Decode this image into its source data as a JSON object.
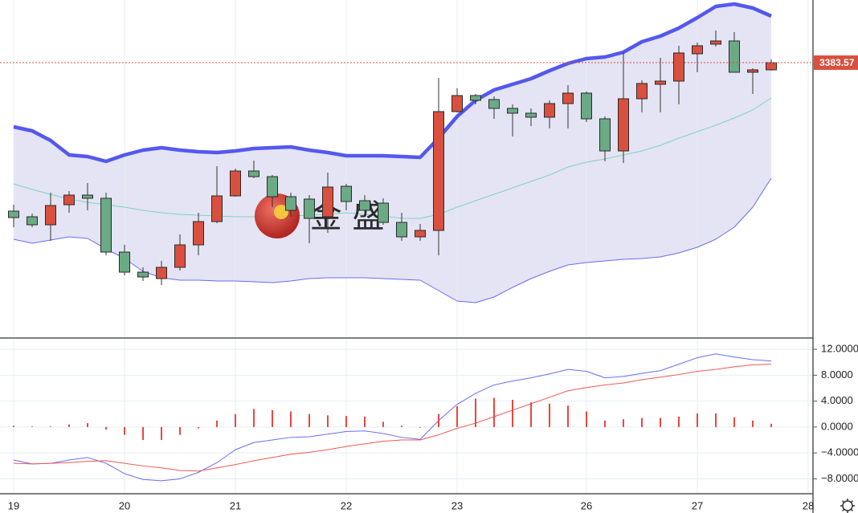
{
  "watermark": "金 盛",
  "chart_data": [
    {
      "type": "candlestick",
      "categories": [
        "19",
        null,
        null,
        null,
        null,
        null,
        "20",
        null,
        null,
        null,
        null,
        null,
        "21",
        null,
        null,
        null,
        null,
        null,
        "22",
        null,
        null,
        null,
        null,
        null,
        "23",
        null,
        null,
        null,
        null,
        null,
        null,
        "26",
        null,
        null,
        null,
        null,
        null,
        "27",
        null,
        null,
        null,
        null,
        null,
        "28"
      ],
      "open": [
        3291.1,
        3287.6,
        3282.6,
        3295.1,
        3301.1,
        3299.1,
        3265.6,
        3253.1,
        3249.1,
        3256.1,
        3270.1,
        3284.6,
        3300.6,
        3316.1,
        3312.6,
        3300.1,
        3298.6,
        3287.6,
        3306.6,
        3297.6,
        3296.1,
        3284.1,
        3275.1,
        3279.1,
        3353.1,
        3363.1,
        3360.6,
        3355.1,
        3352.1,
        3349.6,
        3358.1,
        3364.6,
        3348.6,
        3328.6,
        3361.1,
        3370.1,
        3372.1,
        3389.1,
        3395.1,
        3397.1,
        3377.6,
        3379.1,
        null,
        null
      ],
      "high": [
        3295.1,
        3289.6,
        3302.6,
        3303.6,
        3308.6,
        3302.6,
        3270.1,
        3256.1,
        3260.1,
        3276.6,
        3290.1,
        3319.1,
        3317.6,
        3322.6,
        3313.6,
        3302.6,
        3301.1,
        3315.1,
        3308.1,
        3301.1,
        3299.1,
        3290.1,
        3283.1,
        3374.1,
        3367.6,
        3364.1,
        3362.6,
        3357.6,
        3355.1,
        3360.1,
        3369.6,
        3365.6,
        3350.1,
        3390.1,
        3372.6,
        3386.6,
        3394.1,
        3396.1,
        3403.6,
        3402.6,
        3380.1,
        3385.6,
        null,
        null
      ],
      "low": [
        3281.1,
        3281.1,
        3272.6,
        3290.1,
        3291.6,
        3263.6,
        3251.1,
        3247.6,
        3245.1,
        3254.1,
        3263.6,
        3283.6,
        3300.1,
        3311.6,
        3293.6,
        3287.6,
        3271.1,
        3277.6,
        3291.6,
        3288.6,
        3282.6,
        3272.6,
        3272.6,
        3263.6,
        3352.6,
        3357.6,
        3348.6,
        3337.6,
        3344.1,
        3342.6,
        3342.6,
        3346.6,
        3322.1,
        3321.1,
        3352.6,
        3352.6,
        3357.6,
        3377.6,
        3393.6,
        3377.6,
        3364.1,
        3378.6,
        null,
        null
      ],
      "close": [
        3287.1,
        3282.6,
        3294.6,
        3301.1,
        3299.1,
        3265.6,
        3253.1,
        3250.1,
        3256.1,
        3270.1,
        3284.6,
        3300.6,
        3316.1,
        3312.6,
        3300.1,
        3291.6,
        3286.6,
        3306.1,
        3297.1,
        3291.6,
        3284.1,
        3275.1,
        3279.1,
        3353.1,
        3363.1,
        3360.1,
        3355.1,
        3352.1,
        3349.6,
        3358.1,
        3364.6,
        3348.6,
        3328.6,
        3361.1,
        3370.6,
        3372.1,
        3389.6,
        3394.1,
        3397.1,
        3377.6,
        3379.1,
        3383.57,
        null,
        null
      ],
      "up_color": "#d9503f",
      "down_color": "#6aaa85",
      "upper": {
        "color": "#5558ee",
        "values": [
          3343.6,
          3341.1,
          3335.1,
          3326.1,
          3325.1,
          3322.1,
          3326.1,
          3329.1,
          3330.6,
          3329.1,
          3328.1,
          3327.6,
          3328.6,
          3330.1,
          3330.6,
          3331.1,
          3329.1,
          3327.6,
          3325.6,
          3325.6,
          3325.6,
          3325.1,
          3324.6,
          3336.6,
          3350.1,
          3360.1,
          3366.6,
          3370.1,
          3373.6,
          3378.6,
          3383.1,
          3386.1,
          3387.1,
          3390.1,
          3396.6,
          3400.1,
          3405.1,
          3411.6,
          3418.6,
          3420.1,
          3417.6,
          3412.6,
          null,
          null
        ]
      },
      "middle": {
        "color": "#7fd3bf",
        "values": [
          3308.1,
          3304.6,
          3301.6,
          3298.6,
          3296.6,
          3295.1,
          3293.6,
          3291.6,
          3290.1,
          3289.1,
          3288.6,
          3288.1,
          3287.6,
          3287.6,
          3287.6,
          3288.1,
          3288.6,
          3289.1,
          3290.1,
          3289.1,
          3288.1,
          3286.6,
          3286.6,
          3289.1,
          3293.6,
          3297.6,
          3301.6,
          3305.6,
          3309.6,
          3313.6,
          3318.6,
          3321.6,
          3323.6,
          3326.1,
          3328.6,
          3332.1,
          3336.6,
          3340.6,
          3344.6,
          3349.1,
          3354.1,
          3361.6,
          null,
          null
        ]
      },
      "lower": {
        "color": "#6a6cf0",
        "values": [
          3273.6,
          3271.1,
          3273.1,
          3275.1,
          3274.1,
          3267.6,
          3261.6,
          3253.6,
          3249.6,
          3248.1,
          3248.1,
          3247.6,
          3247.6,
          3247.1,
          3246.6,
          3247.6,
          3249.1,
          3249.6,
          3249.6,
          3249.6,
          3249.1,
          3248.6,
          3248.1,
          3241.6,
          3235.1,
          3234.1,
          3237.6,
          3243.6,
          3249.1,
          3253.6,
          3257.6,
          3259.1,
          3260.1,
          3261.1,
          3261.6,
          3262.6,
          3265.1,
          3268.6,
          3273.6,
          3281.1,
          3293.6,
          3311.6,
          null,
          null
        ]
      },
      "band_color": "#e4e4f4",
      "last_label": "3383.57",
      "last_color": "#d9503f",
      "ylim": [
        3212.6,
        3422.6
      ]
    },
    {
      "type": "combo",
      "series": [
        {
          "type": "line",
          "color": "#6b6ef2",
          "values": [
            -5.1,
            -5.7,
            -5.6,
            -5.1,
            -4.7,
            -5.6,
            -7.2,
            -8.1,
            -8.3,
            -8.0,
            -7.0,
            -5.5,
            -3.5,
            -2.4,
            -2.0,
            -1.6,
            -1.5,
            -1.1,
            -0.7,
            -0.6,
            -1.0,
            -1.6,
            -1.9,
            1.0,
            3.5,
            5.2,
            6.5,
            7.1,
            7.6,
            8.2,
            8.9,
            8.6,
            7.6,
            7.8,
            8.3,
            8.7,
            9.7,
            10.7,
            11.3,
            10.8,
            10.4,
            10.2,
            null,
            null
          ]
        },
        {
          "type": "line",
          "color": "#ee5a52",
          "values": [
            -5.6,
            -5.7,
            -5.6,
            -5.5,
            -5.3,
            -5.2,
            -5.6,
            -6.0,
            -6.3,
            -6.7,
            -6.8,
            -6.3,
            -5.8,
            -5.2,
            -4.7,
            -4.2,
            -3.9,
            -3.5,
            -3.0,
            -2.6,
            -2.2,
            -2.0,
            -2.0,
            -1.2,
            -0.2,
            0.6,
            1.6,
            2.6,
            3.6,
            4.6,
            5.6,
            6.1,
            6.5,
            6.8,
            7.3,
            7.7,
            8.1,
            8.6,
            8.9,
            9.3,
            9.6,
            9.7,
            null,
            null
          ]
        },
        {
          "type": "bar",
          "color": "#e8473f",
          "values": [
            0.2,
            0.1,
            0.1,
            0.4,
            0.6,
            -0.4,
            -1.2,
            -2.0,
            -2.0,
            -1.2,
            -0.2,
            1.0,
            2.0,
            2.8,
            2.6,
            2.4,
            2.0,
            1.8,
            1.7,
            1.6,
            0.8,
            0.2,
            -0.1,
            2.0,
            3.2,
            4.4,
            4.5,
            4.2,
            3.8,
            3.6,
            3.3,
            2.4,
            1.0,
            1.2,
            1.4,
            1.4,
            1.6,
            2.1,
            2.1,
            1.5,
            1.0,
            0.5,
            null,
            null
          ]
        }
      ],
      "ylim": [
        -10.3,
        13.5
      ],
      "yticks": [
        {
          "value": 12,
          "label": "12.0000"
        },
        {
          "value": 8,
          "label": "8.0000"
        },
        {
          "value": 4,
          "label": "4.0000"
        },
        {
          "value": 0,
          "label": "0.0000"
        },
        {
          "value": -4,
          "label": "−4.0000"
        },
        {
          "value": -8,
          "label": "−8.0000"
        }
      ],
      "grid": true
    }
  ]
}
